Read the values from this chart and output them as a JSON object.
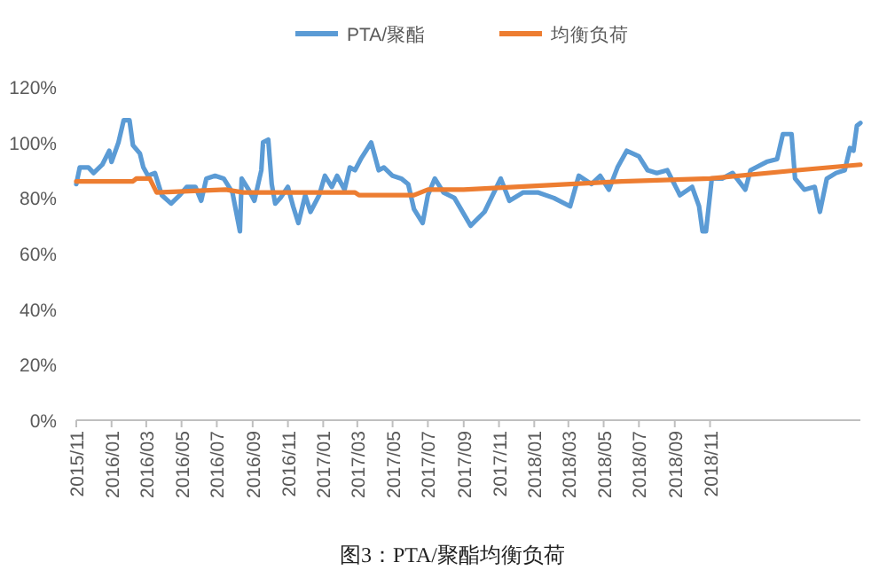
{
  "chart_data": {
    "type": "line",
    "annotations": [
      "图3：PTA/聚酯均衡负荷"
    ],
    "series": [
      {
        "name": "PTA/聚酯",
        "color": "#5b9bd5",
        "x": [
          "2015-11-01",
          "2015-11-07",
          "2015-11-22",
          "2015-12-01",
          "2015-12-16",
          "2015-12-28",
          "2016-01-01",
          "2016-01-13",
          "2016-01-22",
          "2016-02-01",
          "2016-02-07",
          "2016-02-19",
          "2016-02-25",
          "2016-03-04",
          "2016-03-16",
          "2016-03-28",
          "2016-04-13",
          "2016-04-28",
          "2016-05-10",
          "2016-05-25",
          "2016-06-04",
          "2016-06-13",
          "2016-06-28",
          "2016-07-13",
          "2016-07-28",
          "2016-08-10",
          "2016-08-13",
          "2016-08-25",
          "2016-09-04",
          "2016-09-16",
          "2016-09-19",
          "2016-09-28",
          "2016-10-04",
          "2016-10-10",
          "2016-10-19",
          "2016-11-01",
          "2016-11-10",
          "2016-11-19",
          "2016-12-01",
          "2016-12-10",
          "2016-12-25",
          "2017-01-04",
          "2017-01-16",
          "2017-01-25",
          "2017-02-07",
          "2017-02-16",
          "2017-02-25",
          "2017-03-07",
          "2017-03-16",
          "2017-03-25",
          "2017-04-07",
          "2017-04-16",
          "2017-05-01",
          "2017-05-16",
          "2017-05-28",
          "2017-06-07",
          "2017-06-22",
          "2017-07-01",
          "2017-07-13",
          "2017-07-28",
          "2017-08-16",
          "2017-09-13",
          "2017-10-07",
          "2017-11-04",
          "2017-11-19",
          "2017-12-13",
          "2018-01-07",
          "2018-02-04",
          "2018-03-04",
          "2018-03-19",
          "2018-04-10",
          "2018-04-25",
          "2018-05-10",
          "2018-05-25",
          "2018-06-10",
          "2018-07-01",
          "2018-07-16",
          "2018-08-01",
          "2018-08-19",
          "2018-09-10",
          "2018-10-01",
          "2018-10-13",
          "2018-10-19",
          "2018-10-25",
          "2018-11-04",
          "2018-11-22",
          "2018-12-10",
          "2019-01-01",
          "2019-01-10",
          "2019-02-07",
          "2019-02-25",
          "2019-03-07",
          "2019-03-22",
          "2019-03-28",
          "2019-04-13",
          "2019-05-01",
          "2019-05-10",
          "2019-05-22",
          "2019-06-07",
          "2019-06-22",
          "2019-07-01",
          "2019-07-07",
          "2019-07-13",
          "2019-07-19"
        ],
        "values": [
          85,
          91,
          91,
          89,
          92,
          97,
          93,
          100,
          108,
          108,
          99,
          96,
          91,
          88,
          89,
          81,
          78,
          81,
          84,
          84,
          79,
          87,
          88,
          87,
          82,
          68,
          87,
          83,
          79,
          90,
          100,
          101,
          85,
          78,
          80,
          84,
          77,
          71,
          81,
          75,
          81,
          88,
          84,
          88,
          83,
          91,
          90,
          94,
          97,
          100,
          90,
          91,
          88,
          87,
          85,
          76,
          71,
          81,
          87,
          82,
          80,
          70,
          75,
          87,
          79,
          82,
          82,
          80,
          77,
          88,
          85,
          88,
          83,
          91,
          97,
          95,
          90,
          89,
          90,
          81,
          84,
          77,
          68,
          68,
          87,
          87,
          89,
          83,
          90,
          93,
          94,
          103,
          103,
          87,
          83,
          84,
          75,
          87,
          89,
          90,
          98,
          97,
          106,
          107
        ]
      },
      {
        "name": "均衡负荷",
        "color": "#ed7d31",
        "x": [
          "2015-11-01",
          "2016-02-07",
          "2016-02-13",
          "2016-03-07",
          "2016-03-19",
          "2016-07-16",
          "2016-08-16",
          "2017-02-25",
          "2017-03-04",
          "2017-06-07",
          "2017-07-01",
          "2017-09-01",
          "2018-06-01",
          "2018-11-01",
          "2019-04-01",
          "2019-07-19"
        ],
        "values": [
          86,
          86,
          87,
          87,
          82,
          83,
          82,
          82,
          81,
          81,
          83,
          83,
          86,
          87,
          90,
          92
        ]
      }
    ],
    "xlim": [
      "2015-11-01",
      "2019-07-19"
    ],
    "xticks": [
      {
        "value": "2015-11-01",
        "label": "2015/11"
      },
      {
        "value": "2016-01-01",
        "label": "2016/01"
      },
      {
        "value": "2016-03-01",
        "label": "2016/03"
      },
      {
        "value": "2016-05-01",
        "label": "2016/05"
      },
      {
        "value": "2016-07-01",
        "label": "2016/07"
      },
      {
        "value": "2016-09-01",
        "label": "2016/09"
      },
      {
        "value": "2016-11-01",
        "label": "2016/11"
      },
      {
        "value": "2017-01-01",
        "label": "2017/01"
      },
      {
        "value": "2017-03-01",
        "label": "2017/03"
      },
      {
        "value": "2017-05-01",
        "label": "2017/05"
      },
      {
        "value": "2017-07-01",
        "label": "2017/07"
      },
      {
        "value": "2017-09-01",
        "label": "2017/09"
      },
      {
        "value": "2017-11-01",
        "label": "2017/11"
      },
      {
        "value": "2018-01-01",
        "label": "2018/01"
      },
      {
        "value": "2018-03-01",
        "label": "2018/03"
      },
      {
        "value": "2018-05-01",
        "label": "2018/05"
      },
      {
        "value": "2018-07-01",
        "label": "2018/07"
      },
      {
        "value": "2018-09-01",
        "label": "2018/09"
      },
      {
        "value": "2018-11-01",
        "label": "2018/11"
      }
    ],
    "ylim": [
      0,
      120
    ],
    "yticks": [
      {
        "value": 0,
        "label": "0%"
      },
      {
        "value": 20,
        "label": "20%"
      },
      {
        "value": 40,
        "label": "40%"
      },
      {
        "value": 60,
        "label": "60%"
      },
      {
        "value": 80,
        "label": "80%"
      },
      {
        "value": 100,
        "label": "100%"
      },
      {
        "value": 120,
        "label": "120%"
      }
    ],
    "legend": "top",
    "line_style": "solid"
  }
}
